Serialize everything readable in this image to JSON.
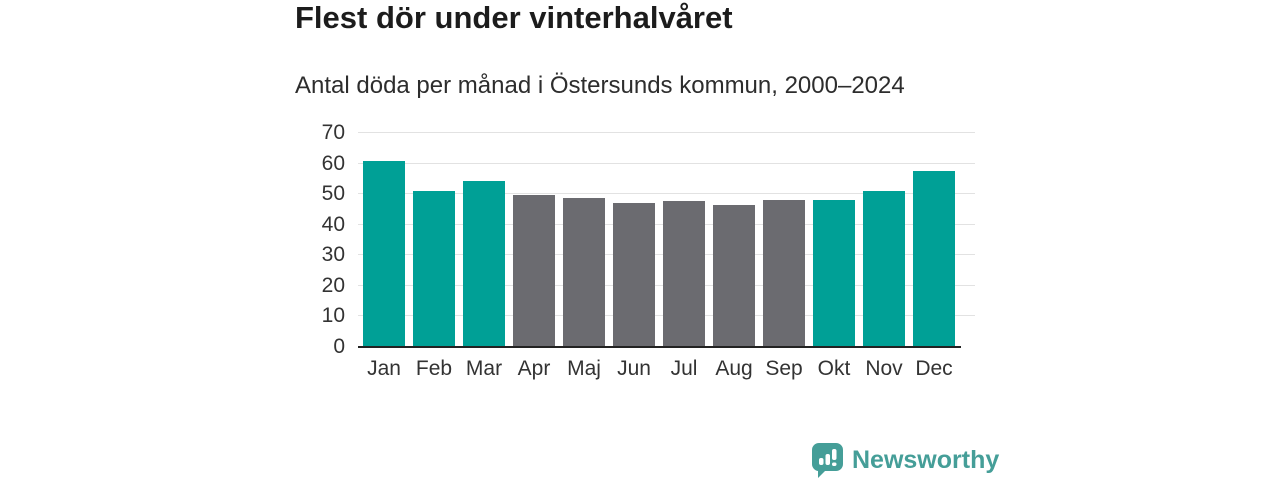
{
  "title": "Flest dör under vinterhalvåret",
  "subtitle": "Antal döda per månad i Östersunds kommun, 2000–2024",
  "branding": {
    "logo_text": "Newsworthy",
    "logo_icon": "bar-chart-speech-bubble-icon",
    "logo_color": "#459e98"
  },
  "colors": {
    "winter_bar": "#00a096",
    "summer_bar": "#6b6b70",
    "gridline": "#e2e2e2",
    "axis_line": "#222222",
    "tick_text": "#333333"
  },
  "chart_data": {
    "type": "bar",
    "title": "Flest dör under vinterhalvåret",
    "subtitle": "Antal döda per månad i Östersunds kommun, 2000–2024",
    "categories": [
      "Jan",
      "Feb",
      "Mar",
      "Apr",
      "Maj",
      "Jun",
      "Jul",
      "Aug",
      "Sep",
      "Okt",
      "Nov",
      "Dec"
    ],
    "values": [
      60.8,
      51.0,
      54.4,
      49.7,
      48.8,
      47.2,
      47.9,
      46.6,
      48.1,
      48.0,
      50.9,
      57.5
    ],
    "bar_groups": [
      "winter",
      "winter",
      "winter",
      "summer",
      "summer",
      "summer",
      "summer",
      "summer",
      "summer",
      "winter",
      "winter",
      "winter"
    ],
    "xlabel": "",
    "ylabel": "",
    "ylim": [
      0,
      70
    ],
    "yticks": [
      0,
      10,
      20,
      30,
      40,
      50,
      60,
      70
    ],
    "grid": true,
    "legend": "none"
  }
}
